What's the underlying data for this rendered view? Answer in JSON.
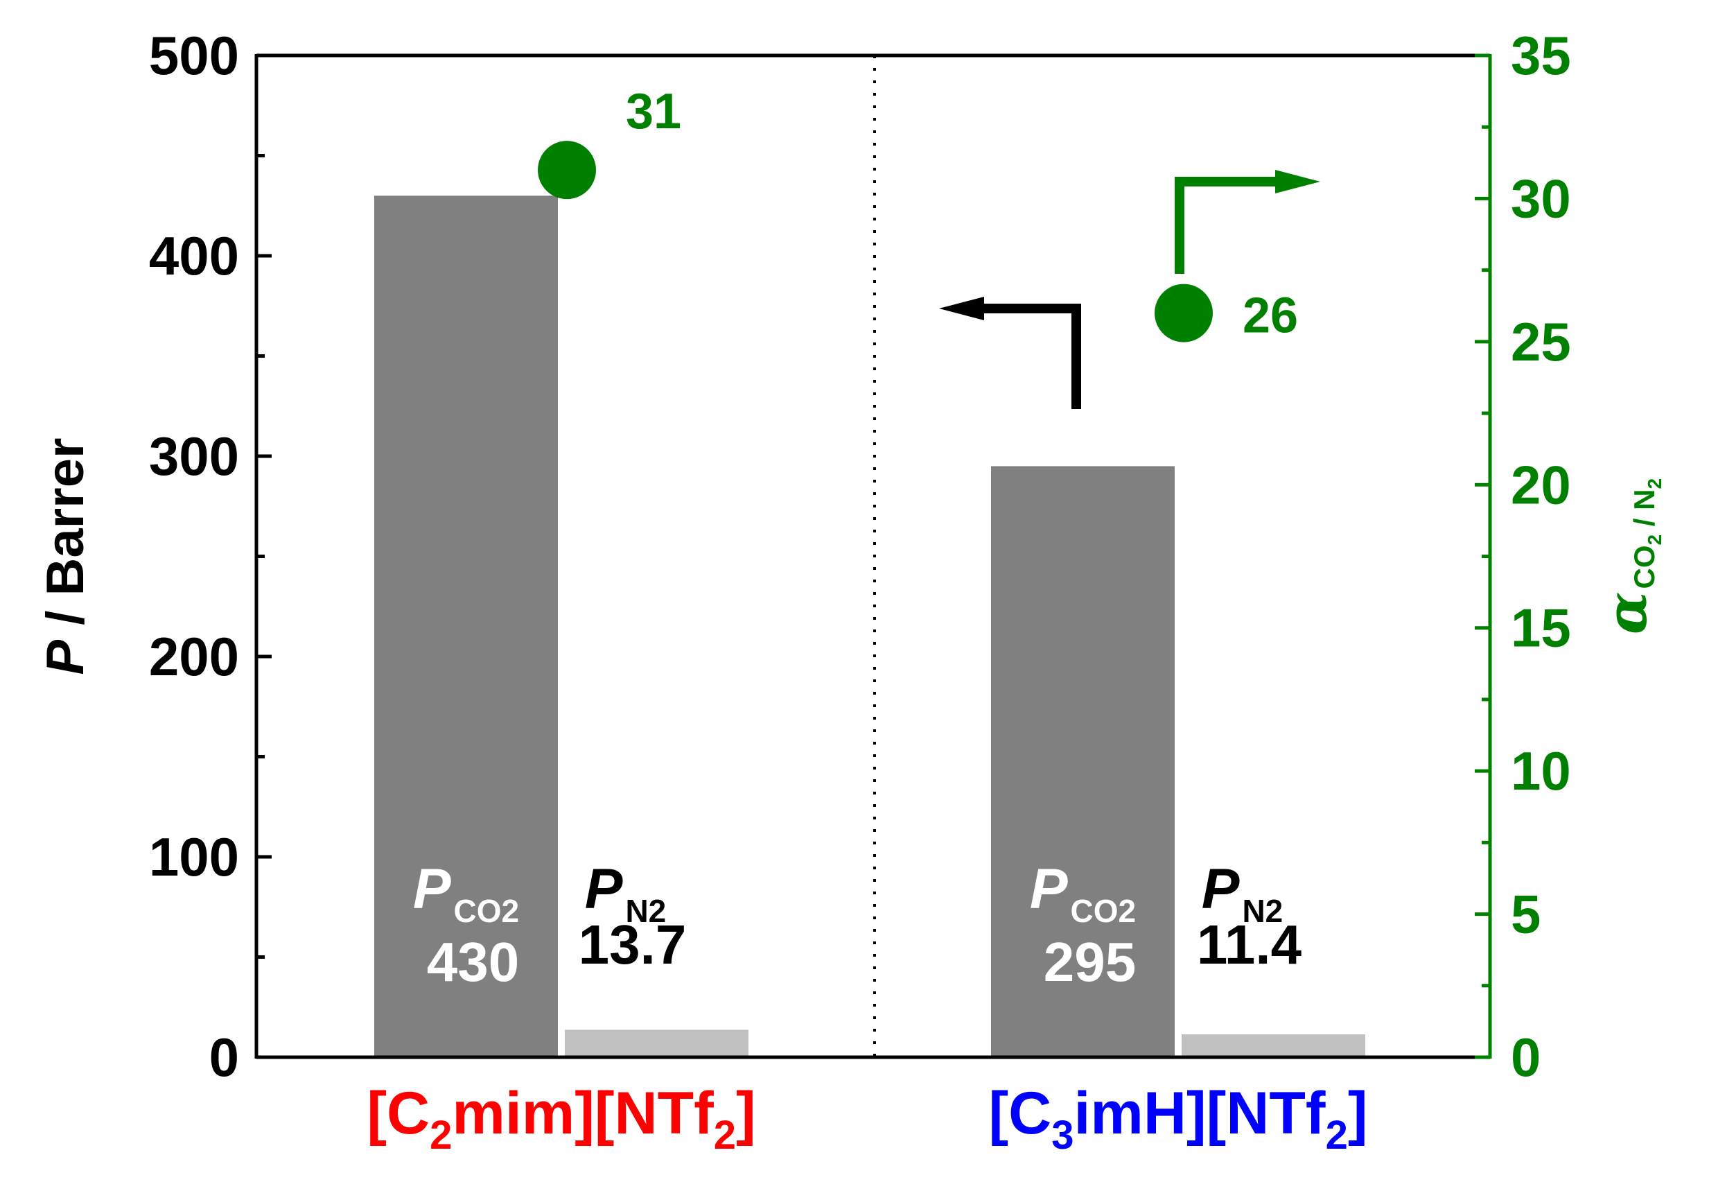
{
  "chart_data": {
    "type": "bar",
    "title": "",
    "categories": [
      {
        "prefix": "[C",
        "sub": "2",
        "mid": "mim][NTf",
        "sub2": "2",
        "suffix": "]",
        "color": "#ff0000"
      },
      {
        "prefix": "[C",
        "sub": "3",
        "mid": "imH][NTf",
        "sub2": "2",
        "suffix": "]",
        "color": "#0000ff"
      }
    ],
    "series": [
      {
        "label_main": "P",
        "label_sub": "CO2",
        "values": [
          430,
          295
        ],
        "value_labels": [
          "430",
          "295"
        ],
        "color": "#808080",
        "text_color": "#ffffff"
      },
      {
        "label_main": "P",
        "label_sub": "N2",
        "values": [
          13.7,
          11.4
        ],
        "value_labels": [
          "13.7",
          "11.4"
        ],
        "color": "#c0c0c0",
        "text_color": "#000000"
      }
    ],
    "selectivity": {
      "values": [
        31,
        26
      ],
      "labels": [
        "31",
        "26"
      ],
      "color": "#008000"
    },
    "y_left": {
      "label_italic": "P",
      "label_rest": " / Barrer",
      "min": 0,
      "max": 500,
      "ticks": [
        0,
        100,
        200,
        300,
        400,
        500
      ],
      "color": "#000000"
    },
    "y_right": {
      "label_main": "α",
      "label_sub": "CO",
      "label_subsub": "2",
      "label_sep": " / N",
      "label_subsub2": "2",
      "min": 0,
      "max": 35,
      "ticks": [
        0,
        5,
        10,
        15,
        20,
        25,
        30,
        35
      ],
      "color": "#008000"
    },
    "grid": false,
    "legend": "none"
  }
}
